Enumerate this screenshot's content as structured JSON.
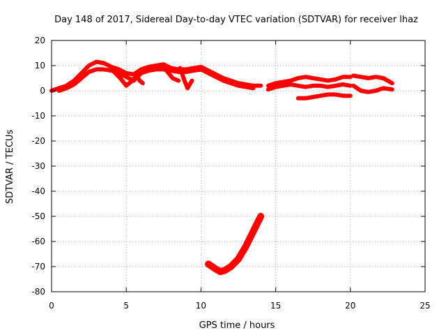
{
  "chart_data": {
    "type": "scatter",
    "title": "Day 148 of 2017, Sidereal Day-to-day VTEC variation (SDTVAR) for receiver lhaz",
    "xlabel": "GPS time / hours",
    "ylabel": "SDTVAR / TECUs",
    "xlim": [
      0,
      25
    ],
    "ylim": [
      -80,
      20
    ],
    "xticks": [
      0,
      5,
      10,
      15,
      20,
      25
    ],
    "yticks": [
      -80,
      -70,
      -60,
      -50,
      -40,
      -30,
      -20,
      -10,
      0,
      10,
      20
    ],
    "grid": true,
    "legend": "none",
    "color": "#ff0000",
    "series": [
      {
        "name": "track-upper-main",
        "thickness": 3,
        "x": [
          0,
          0.5,
          1,
          1.5,
          2,
          2.5,
          3,
          3.5,
          4,
          4.5,
          5,
          5.5,
          6,
          6.5,
          7,
          7.5,
          8,
          8.5,
          9,
          9.5,
          10,
          10.5,
          11,
          11.5,
          12,
          12.5,
          13,
          13.5,
          14
        ],
        "y": [
          0,
          1,
          2,
          4,
          7,
          10,
          11.5,
          11,
          9.5,
          8.5,
          7,
          6.5,
          8.5,
          9.5,
          10,
          10.5,
          9,
          8.5,
          8.5,
          9,
          9.5,
          8,
          6.5,
          5,
          4,
          3,
          2.5,
          2,
          2
        ]
      },
      {
        "name": "track-lower-main",
        "thickness": 3,
        "x": [
          0.5,
          1,
          1.5,
          2,
          2.5,
          3,
          3.5,
          4,
          4.5,
          5,
          5.5,
          6,
          6.5,
          7,
          7.5,
          8,
          8.5,
          9,
          9.5,
          10,
          10.5,
          11,
          11.5,
          12,
          12.5,
          13,
          13.5
        ],
        "y": [
          0,
          1,
          2.5,
          5,
          7.5,
          8.5,
          8.5,
          8,
          7,
          5.5,
          4,
          7,
          8,
          8.5,
          8.5,
          8,
          7.5,
          7.5,
          8,
          8.5,
          7,
          5.5,
          4,
          3,
          2,
          1.5,
          1
        ]
      },
      {
        "name": "arc-drop-1",
        "thickness": 3,
        "x": [
          4.1,
          4.6,
          5.0,
          5.4,
          5.8
        ],
        "y": [
          8,
          5,
          2,
          4,
          7
        ]
      },
      {
        "name": "arc-drop-2",
        "thickness": 3,
        "x": [
          5.6,
          5.9,
          6.1
        ],
        "y": [
          7,
          4,
          3
        ]
      },
      {
        "name": "arc-drop-3",
        "thickness": 3,
        "x": [
          7.2,
          7.7,
          8.1,
          8.5
        ],
        "y": [
          10,
          8,
          5,
          4
        ]
      },
      {
        "name": "arc-drop-4",
        "thickness": 3,
        "x": [
          8.6,
          8.9,
          9.1,
          9.4
        ],
        "y": [
          9,
          4,
          1,
          4
        ]
      },
      {
        "name": "track-seg2-upper",
        "thickness": 3,
        "x": [
          14.5,
          15,
          15.5,
          16,
          16.5,
          17,
          17.5,
          18,
          18.5,
          19,
          19.5,
          20
        ],
        "y": [
          2,
          3,
          3.5,
          4,
          5,
          5.5,
          5,
          4.5,
          4,
          4.5,
          5.5,
          5.5
        ]
      },
      {
        "name": "track-seg2-lower",
        "thickness": 3,
        "x": [
          14.5,
          15,
          15.5,
          16,
          16.5,
          17,
          17.5,
          18,
          18.5,
          19,
          19.5,
          20
        ],
        "y": [
          0.5,
          1.5,
          2,
          2.5,
          2,
          1.5,
          2,
          2,
          1.5,
          2,
          2.5,
          2
        ]
      },
      {
        "name": "track-seg2-dip",
        "thickness": 3,
        "x": [
          16.5,
          17,
          17.5,
          18,
          18.5,
          19,
          19.5,
          20
        ],
        "y": [
          -3,
          -3,
          -2.5,
          -2,
          -1.5,
          -1.5,
          -2,
          -2
        ]
      },
      {
        "name": "track-seg3-upper",
        "thickness": 3,
        "x": [
          20.2,
          20.7,
          21.2,
          21.7,
          22.2,
          22.8
        ],
        "y": [
          6,
          5.5,
          5,
          5.5,
          5,
          3
        ]
      },
      {
        "name": "track-seg3-lower",
        "thickness": 3,
        "x": [
          20.2,
          20.7,
          21.2,
          21.7,
          22.2,
          22.8
        ],
        "y": [
          2,
          0,
          -0.5,
          0,
          1,
          0.5
        ]
      },
      {
        "name": "track-low-curve",
        "thickness": 5,
        "x": [
          10.5,
          11,
          11.3,
          11.6,
          12,
          12.5,
          13,
          13.5,
          14
        ],
        "y": [
          -69,
          -71,
          -72,
          -71.5,
          -70,
          -67,
          -62,
          -56,
          -50
        ]
      }
    ]
  }
}
